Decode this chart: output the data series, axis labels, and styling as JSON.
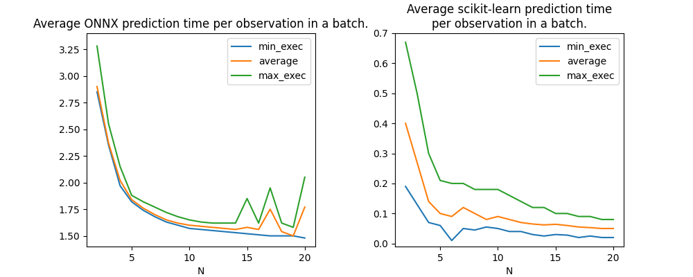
{
  "plot1_title": "Average ONNX prediction time per observation in a batch.",
  "plot2_title": "Average scikit-learn prediction time\nper observation in a batch.",
  "xlabel": "N",
  "legend_labels": [
    "min_exec",
    "average",
    "max_exec"
  ],
  "line_colors": [
    "#1f77b4",
    "#ff7f0e",
    "#2ca02c"
  ],
  "onnx_N": [
    2,
    3,
    4,
    5,
    6,
    7,
    8,
    9,
    10,
    11,
    12,
    13,
    14,
    15,
    16,
    17,
    18,
    19,
    20
  ],
  "onnx_min": [
    2.85,
    2.35,
    1.97,
    1.82,
    1.74,
    1.68,
    1.63,
    1.6,
    1.57,
    1.56,
    1.55,
    1.54,
    1.53,
    1.52,
    1.51,
    1.5,
    1.5,
    1.5,
    1.48
  ],
  "onnx_avg": [
    2.9,
    2.37,
    2.02,
    1.84,
    1.76,
    1.7,
    1.65,
    1.62,
    1.6,
    1.59,
    1.58,
    1.57,
    1.56,
    1.58,
    1.56,
    1.75,
    1.54,
    1.5,
    1.77
  ],
  "onnx_max": [
    3.28,
    2.55,
    2.15,
    1.88,
    1.82,
    1.77,
    1.72,
    1.68,
    1.65,
    1.63,
    1.62,
    1.62,
    1.62,
    1.85,
    1.62,
    1.95,
    1.62,
    1.58,
    2.05
  ],
  "sklearn_N": [
    2,
    3,
    4,
    5,
    6,
    7,
    8,
    9,
    10,
    11,
    12,
    13,
    14,
    15,
    16,
    17,
    18,
    19,
    20
  ],
  "sklearn_min": [
    0.19,
    0.13,
    0.07,
    0.06,
    0.01,
    0.05,
    0.045,
    0.055,
    0.05,
    0.04,
    0.04,
    0.03,
    0.025,
    0.03,
    0.028,
    0.02,
    0.025,
    0.02,
    0.02
  ],
  "sklearn_avg": [
    0.4,
    0.27,
    0.14,
    0.1,
    0.09,
    0.12,
    0.1,
    0.08,
    0.09,
    0.08,
    0.07,
    0.065,
    0.062,
    0.064,
    0.06,
    0.055,
    0.053,
    0.05,
    0.05
  ],
  "sklearn_max": [
    0.67,
    0.5,
    0.3,
    0.21,
    0.2,
    0.2,
    0.18,
    0.18,
    0.18,
    0.16,
    0.14,
    0.12,
    0.12,
    0.1,
    0.1,
    0.09,
    0.09,
    0.08,
    0.08
  ],
  "onnx_ylim": [
    1.4,
    3.4
  ],
  "sklearn_ylim": [
    -0.01,
    0.7
  ],
  "onnx_yticks": [
    1.5,
    1.75,
    2.0,
    2.25,
    2.5,
    2.75,
    3.0,
    3.25
  ],
  "sklearn_yticks": [
    0.0,
    0.1,
    0.2,
    0.3,
    0.4,
    0.5,
    0.6,
    0.7
  ]
}
